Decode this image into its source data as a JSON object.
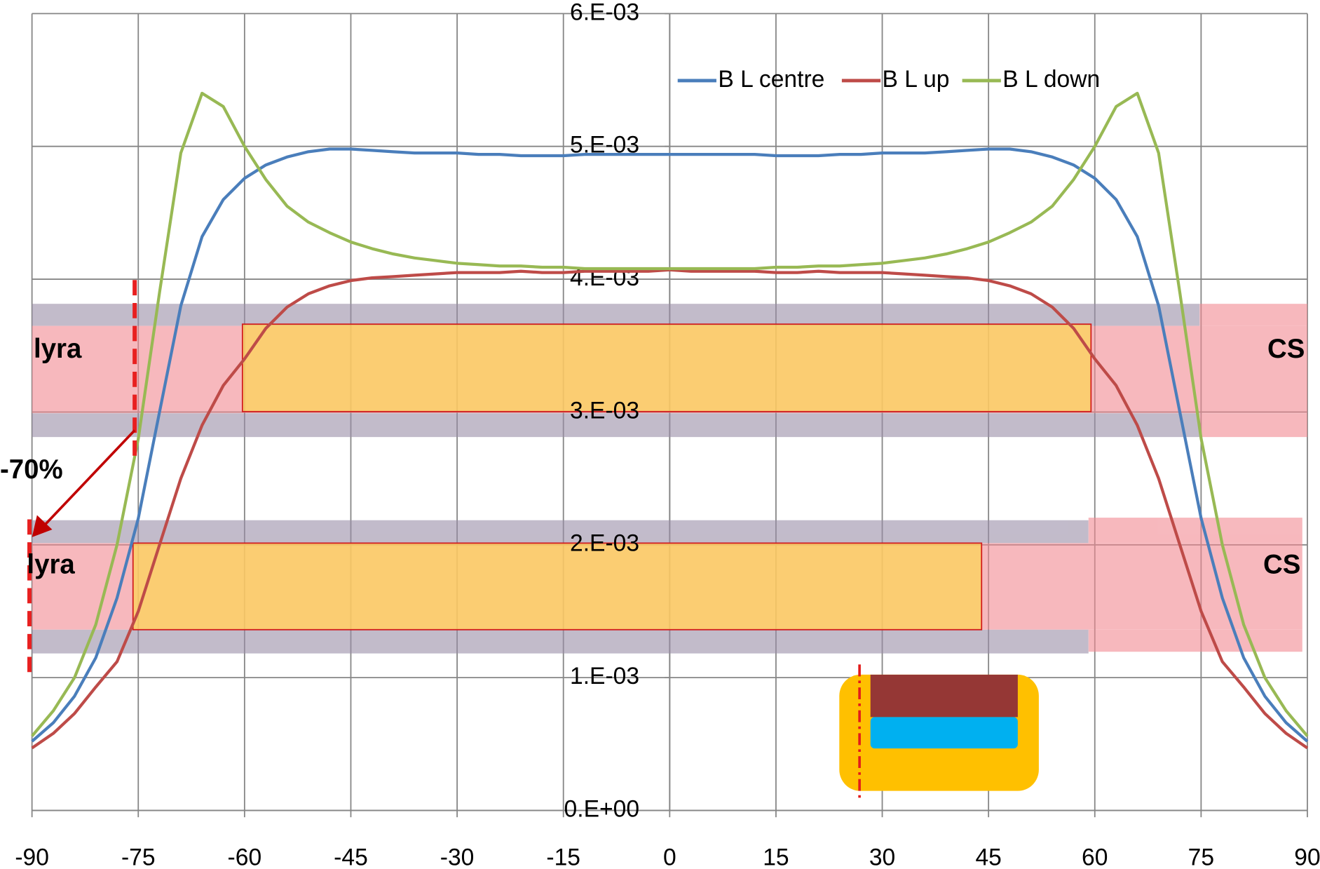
{
  "chart_data": {
    "type": "line",
    "x": [
      -90,
      -87,
      -84,
      -81,
      -78,
      -75,
      -72,
      -69,
      -66,
      -63,
      -60,
      -57,
      -54,
      -51,
      -48,
      -45,
      -42,
      -39,
      -36,
      -33,
      -30,
      -27,
      -24,
      -21,
      -18,
      -15,
      -12,
      -9,
      -6,
      -3,
      0,
      3,
      6,
      9,
      12,
      15,
      18,
      21,
      24,
      27,
      30,
      33,
      36,
      39,
      42,
      45,
      48,
      51,
      54,
      57,
      60,
      63,
      66,
      69,
      72,
      75,
      78,
      81,
      84,
      87,
      90
    ],
    "series": [
      {
        "name": "B L centre",
        "color": "#4a7ebb",
        "values": [
          0.00052,
          0.00066,
          0.00086,
          0.00115,
          0.0016,
          0.0022,
          0.003,
          0.0038,
          0.00432,
          0.0046,
          0.00476,
          0.00486,
          0.00492,
          0.00496,
          0.00498,
          0.00498,
          0.00497,
          0.00496,
          0.00495,
          0.00495,
          0.00495,
          0.00494,
          0.00494,
          0.00493,
          0.00493,
          0.00493,
          0.00494,
          0.00494,
          0.00494,
          0.00494,
          0.00494,
          0.00494,
          0.00494,
          0.00494,
          0.00494,
          0.00493,
          0.00493,
          0.00493,
          0.00494,
          0.00494,
          0.00495,
          0.00495,
          0.00495,
          0.00496,
          0.00497,
          0.00498,
          0.00498,
          0.00496,
          0.00492,
          0.00486,
          0.00476,
          0.0046,
          0.00432,
          0.0038,
          0.003,
          0.0022,
          0.0016,
          0.00115,
          0.00086,
          0.00066,
          0.00052
        ]
      },
      {
        "name": "B L up",
        "color": "#be4b48",
        "values": [
          0.00047,
          0.00058,
          0.00073,
          0.00093,
          0.00112,
          0.0015,
          0.002,
          0.0025,
          0.0029,
          0.0032,
          0.0034,
          0.00363,
          0.00379,
          0.00389,
          0.00395,
          0.00399,
          0.00401,
          0.00402,
          0.00403,
          0.00404,
          0.00405,
          0.00405,
          0.00405,
          0.00406,
          0.00405,
          0.00405,
          0.00406,
          0.00406,
          0.00406,
          0.00406,
          0.00407,
          0.00406,
          0.00406,
          0.00406,
          0.00406,
          0.00405,
          0.00405,
          0.00406,
          0.00405,
          0.00405,
          0.00405,
          0.00404,
          0.00403,
          0.00402,
          0.00401,
          0.00399,
          0.00395,
          0.00389,
          0.00379,
          0.00363,
          0.0034,
          0.0032,
          0.0029,
          0.0025,
          0.002,
          0.0015,
          0.00112,
          0.00093,
          0.00073,
          0.00058,
          0.00047
        ]
      },
      {
        "name": "B L down",
        "color": "#98b954",
        "values": [
          0.00056,
          0.00075,
          0.001,
          0.0014,
          0.002,
          0.0028,
          0.0039,
          0.00495,
          0.0054,
          0.0053,
          0.005,
          0.00475,
          0.00455,
          0.00443,
          0.00435,
          0.00428,
          0.00423,
          0.00419,
          0.00416,
          0.00414,
          0.00412,
          0.00411,
          0.0041,
          0.0041,
          0.00409,
          0.00409,
          0.00408,
          0.00408,
          0.00408,
          0.00408,
          0.00408,
          0.00408,
          0.00408,
          0.00408,
          0.00408,
          0.00409,
          0.00409,
          0.0041,
          0.0041,
          0.00411,
          0.00412,
          0.00414,
          0.00416,
          0.00419,
          0.00423,
          0.00428,
          0.00435,
          0.00443,
          0.00455,
          0.00475,
          0.005,
          0.0053,
          0.0054,
          0.00495,
          0.0039,
          0.0028,
          0.002,
          0.0014,
          0.001,
          0.00075,
          0.00056
        ]
      }
    ],
    "xlim": [
      -90,
      90
    ],
    "xticks": [
      -90,
      -75,
      -60,
      -45,
      -30,
      -15,
      0,
      15,
      30,
      45,
      60,
      75,
      90
    ],
    "ylim": [
      0,
      0.006
    ],
    "yticks": [
      {
        "value": 0,
        "label": "0.E+00"
      },
      {
        "value": 0.001,
        "label": "1.E-03"
      },
      {
        "value": 0.002,
        "label": "2.E-03"
      },
      {
        "value": 0.003,
        "label": "3.E-03"
      },
      {
        "value": 0.004,
        "label": "4.E-03"
      },
      {
        "value": 0.005,
        "label": "5.E-03"
      },
      {
        "value": 0.006,
        "label": "6.E-03"
      }
    ],
    "grid": true,
    "legend": "top-right",
    "annotations": [
      "lyra",
      "CS",
      "-70%",
      "lyra",
      "CS"
    ]
  }
}
